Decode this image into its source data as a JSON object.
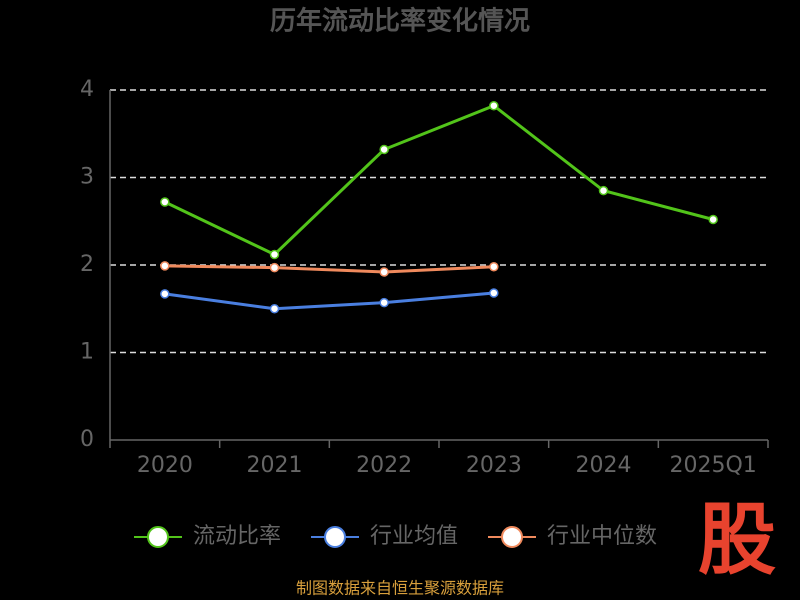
{
  "chart_data": {
    "type": "line",
    "title": "历年流动比率变化情况",
    "categories": [
      "2020",
      "2021",
      "2022",
      "2023",
      "2024",
      "2025Q1"
    ],
    "series": [
      {
        "name": "流动比率",
        "color": "#52c41a",
        "values": [
          2.72,
          2.12,
          3.32,
          3.82,
          2.85,
          2.52
        ]
      },
      {
        "name": "行业均值",
        "color": "#4a7fe0",
        "values": [
          1.67,
          1.5,
          1.57,
          1.68,
          null,
          null
        ]
      },
      {
        "name": "行业中位数",
        "color": "#f08a5d",
        "values": [
          1.99,
          1.97,
          1.92,
          1.98,
          null,
          null
        ]
      }
    ],
    "ylim": [
      0,
      4
    ],
    "yticks": [
      0,
      1,
      2,
      3,
      4
    ],
    "grid": true,
    "source": "制图数据来自恒生聚源数据库",
    "logo": "股"
  }
}
